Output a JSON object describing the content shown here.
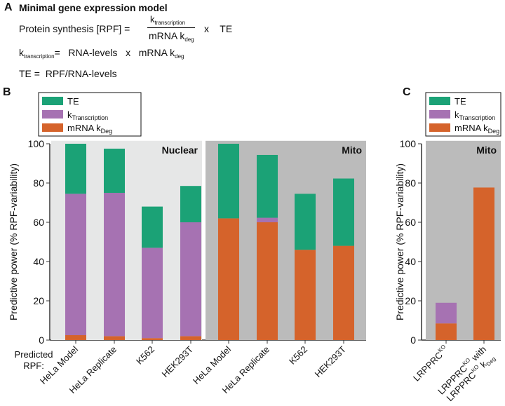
{
  "panel_a": {
    "letter": "A",
    "title": "Minimal gene expression model",
    "eq1_lhs": "Protein synthesis [RPF] =",
    "k": "k",
    "transcription": "transcription",
    "mrna_k": "mRNA k",
    "deg": "deg",
    "times_te": "x    TE",
    "eq2_rhs": "=   RNA-levels   x   mRNA k",
    "eq3": "TE =  RPF/RNA-levels"
  },
  "colors": {
    "te": "#1ba276",
    "ktx": "#a672b2",
    "deg": "#d5632b",
    "nuclear_bg": "#e6e7e7",
    "mito_bg": "#bbbbbb"
  },
  "legend": {
    "te": "TE",
    "ktx_k": "k",
    "ktx_sub": "Transcription",
    "deg_main": "mRNA k",
    "deg_sub": "Deg"
  },
  "x_prefix": "Predicted RPF:",
  "chart_data": [
    {
      "type": "bar",
      "stacked": true,
      "panel": "B",
      "ylabel": "Predictive power (% RPF-variability)",
      "ylim": [
        0,
        100
      ],
      "yticks": [
        0,
        20,
        40,
        60,
        80,
        100
      ],
      "groups": [
        {
          "name": "Nuclear",
          "categories": [
            "HeLa Model",
            "HeLa Replicate",
            "K562",
            "HEK293T"
          ],
          "series": [
            {
              "name": "mRNA kDeg",
              "values": [
                2.5,
                2,
                1,
                2
              ]
            },
            {
              "name": "kTranscription",
              "values": [
                72,
                73,
                46,
                58
              ]
            },
            {
              "name": "TE",
              "values": [
                25.5,
                22.5,
                21,
                18.5
              ]
            }
          ]
        },
        {
          "name": "Mito",
          "categories": [
            "HeLa Model",
            "HeLa Replicate",
            "K562",
            "HEK293T"
          ],
          "series": [
            {
              "name": "mRNA kDeg",
              "values": [
                62,
                60,
                46,
                48
              ]
            },
            {
              "name": "kTranscription",
              "values": [
                0,
                2.3,
                0,
                0
              ]
            },
            {
              "name": "TE",
              "values": [
                38,
                32,
                28.5,
                34.3
              ]
            }
          ]
        }
      ],
      "legend": "top-left"
    },
    {
      "type": "bar",
      "stacked": true,
      "panel": "C",
      "ylabel": "Predictive power (% RPF-variability)",
      "ylim": [
        0,
        100
      ],
      "yticks": [
        0,
        20,
        40,
        60,
        80,
        100
      ],
      "groups": [
        {
          "name": "Mito",
          "categories": [
            "LRPPRCKO",
            "LRPPRCKO with LRPPRCKO kDeg"
          ],
          "series": [
            {
              "name": "mRNA kDeg",
              "values": [
                8.5,
                77.7
              ]
            },
            {
              "name": "kTranscription",
              "values": [
                10.5,
                0
              ]
            },
            {
              "name": "TE",
              "values": [
                0,
                0
              ]
            }
          ]
        }
      ],
      "legend": "top"
    }
  ],
  "c_labels": {
    "l1": "LRPPRC",
    "ko": "KO",
    "with": " with",
    "k": " k",
    "deg": "Deg"
  }
}
